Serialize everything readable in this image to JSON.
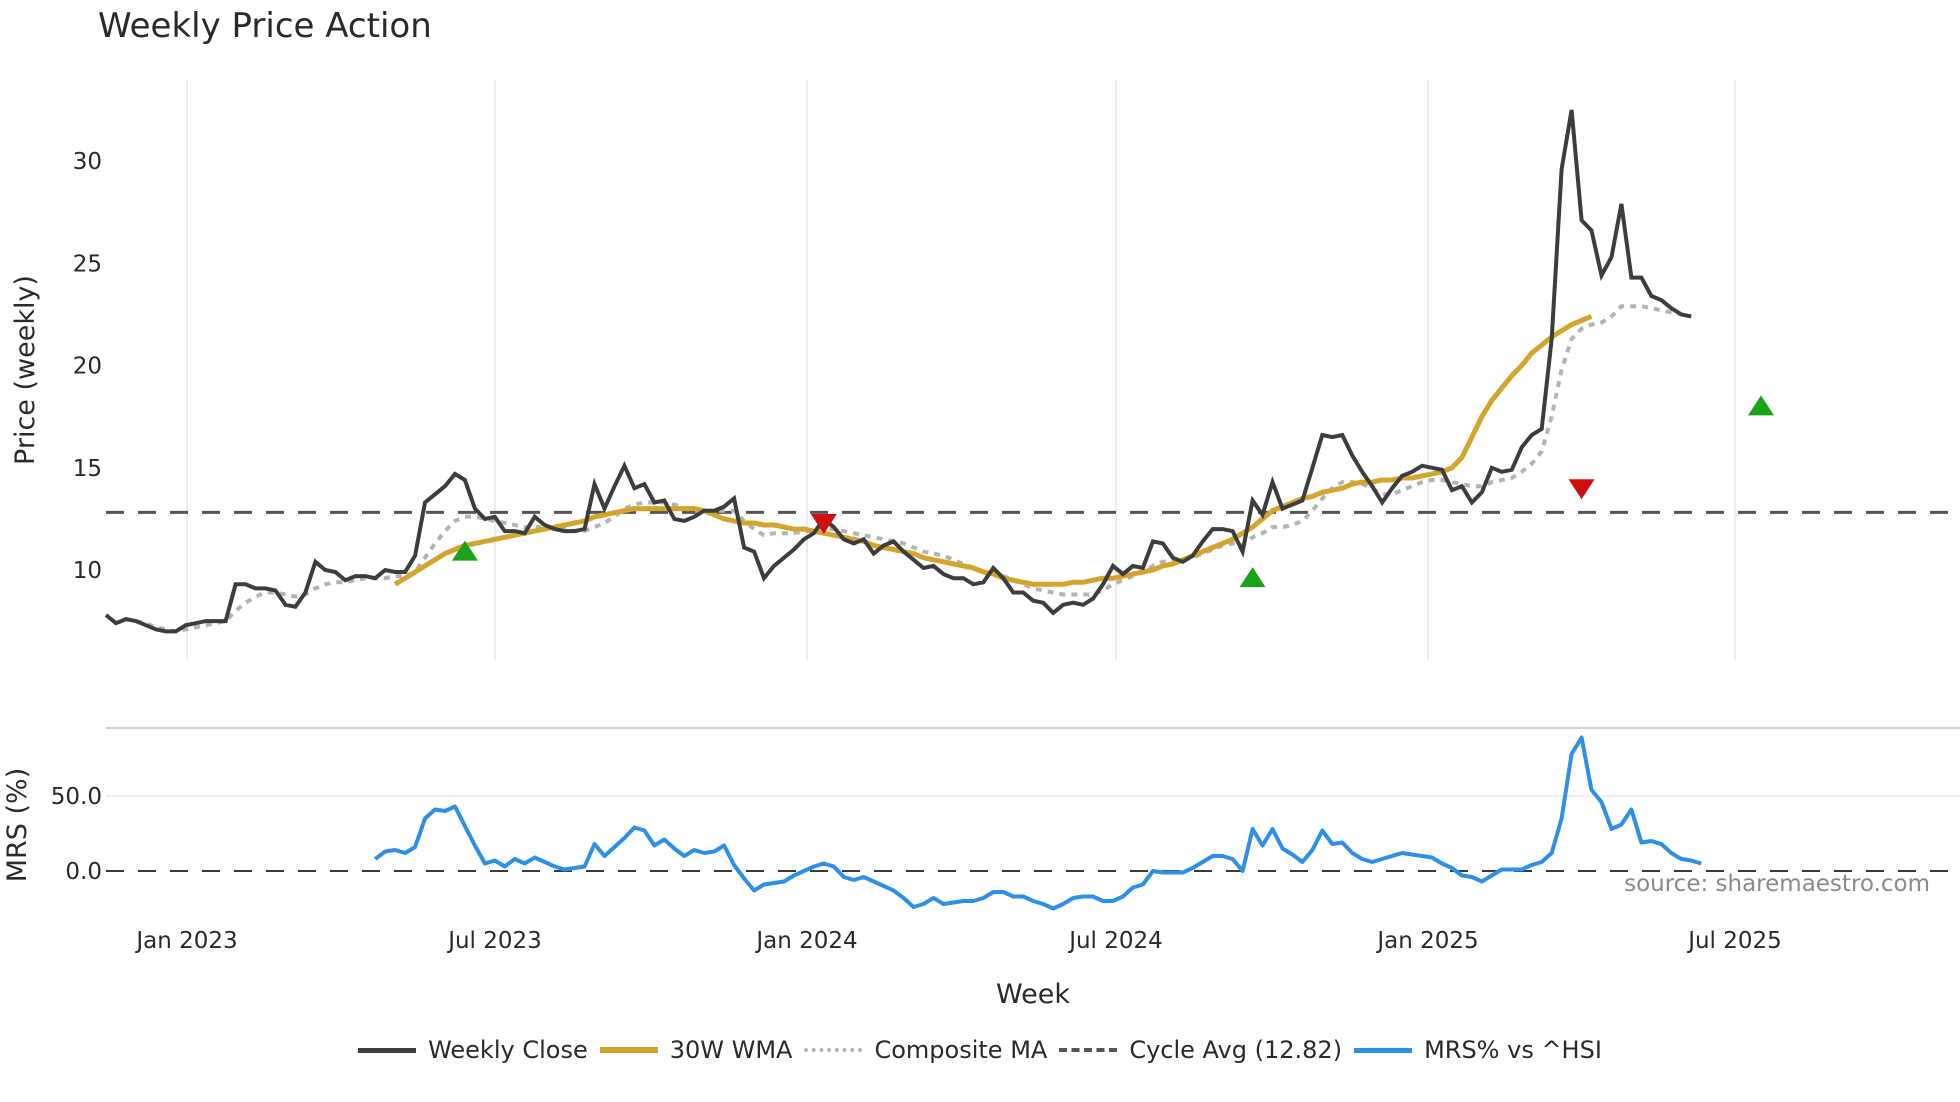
{
  "title": "Weekly Price Action",
  "source_note": "source: sharemaestro.com",
  "colors": {
    "close": "#3d3d3d",
    "wma": "#d4a52c",
    "composite": "#b4b4b4",
    "cycle": "#555555",
    "mrs": "#2e8fe6",
    "buy_marker": "#1aa31a",
    "sell_marker": "#d01010",
    "grid": "#ececf0"
  },
  "legend": [
    {
      "label": "Weekly Close",
      "style": "solid-dark"
    },
    {
      "label": "30W WMA",
      "style": "solid-gold"
    },
    {
      "label": "Composite MA",
      "style": "dot-gray"
    },
    {
      "label": "Cycle Avg (12.82)",
      "style": "dash-dark"
    },
    {
      "label": "MRS% vs ^HSI",
      "style": "solid-blue"
    }
  ],
  "chart_data": [
    {
      "type": "line",
      "title": "Weekly Price Action",
      "xlabel": "Week",
      "ylabel": "Price (weekly)",
      "x_ticks": [
        "Jan 2023",
        "Jul 2023",
        "Jan 2024",
        "Jul 2024",
        "Jan 2025",
        "Jul 2025"
      ],
      "y_ticks": [
        10,
        15,
        20,
        25,
        30
      ],
      "ylim": [
        5.8,
        33.5
      ],
      "grid": "vertical",
      "start_week": "2022-11-28",
      "horizontal_line": {
        "name": "Cycle Avg (12.82)",
        "value": 12.82
      },
      "series": [
        {
          "name": "Weekly Close",
          "start_index": 0,
          "values": [
            7.8,
            7.4,
            7.6,
            7.5,
            7.3,
            7.1,
            7.0,
            7.0,
            7.3,
            7.4,
            7.5,
            7.5,
            7.5,
            9.3,
            9.3,
            9.1,
            9.1,
            9.0,
            8.3,
            8.2,
            8.9,
            10.4,
            10.0,
            9.9,
            9.5,
            9.7,
            9.7,
            9.6,
            10.0,
            9.9,
            9.9,
            10.7,
            13.3,
            13.7,
            14.1,
            14.7,
            14.4,
            13.0,
            12.5,
            12.6,
            11.9,
            11.9,
            11.8,
            12.6,
            12.2,
            12.0,
            11.9,
            11.9,
            12.0,
            14.2,
            13.0,
            14.1,
            15.1,
            14.0,
            14.2,
            13.3,
            13.4,
            12.5,
            12.4,
            12.6,
            12.9,
            12.9,
            13.1,
            13.5,
            11.1,
            10.9,
            9.6,
            10.2,
            10.6,
            11.0,
            11.5,
            11.8,
            12.5,
            12.1,
            11.5,
            11.3,
            11.5,
            10.8,
            11.2,
            11.4,
            10.9,
            10.5,
            10.1,
            10.2,
            9.8,
            9.6,
            9.6,
            9.3,
            9.4,
            10.1,
            9.6,
            8.9,
            8.9,
            8.5,
            8.4,
            7.9,
            8.3,
            8.4,
            8.3,
            8.6,
            9.3,
            10.2,
            9.8,
            10.2,
            10.1,
            11.4,
            11.3,
            10.6,
            10.4,
            10.7,
            11.4,
            12.0,
            12.0,
            11.9,
            10.9,
            13.4,
            12.7,
            14.3,
            13.0,
            13.2,
            13.4,
            15.0,
            16.6,
            16.5,
            16.6,
            15.6,
            14.8,
            14.1,
            13.3,
            14.0,
            14.6,
            14.8,
            15.1,
            15.0,
            14.9,
            13.9,
            14.1,
            13.3,
            13.8,
            15.0,
            14.8,
            14.9,
            16.0,
            16.6,
            16.9,
            21.3,
            29.6,
            32.5,
            27.1,
            26.6,
            24.4,
            25.3,
            27.9,
            24.3,
            24.3,
            23.4,
            23.2,
            22.8,
            22.5,
            22.4
          ]
        },
        {
          "name": "30W WMA",
          "start_index": 29,
          "values": [
            9.3,
            9.6,
            9.9,
            10.2,
            10.5,
            10.8,
            11.0,
            11.2,
            11.3,
            11.4,
            11.5,
            11.6,
            11.7,
            11.8,
            11.9,
            12.0,
            12.1,
            12.2,
            12.3,
            12.4,
            12.6,
            12.7,
            12.8,
            12.9,
            13.0,
            13.0,
            13.0,
            13.0,
            13.0,
            13.0,
            13.0,
            12.9,
            12.7,
            12.5,
            12.4,
            12.3,
            12.3,
            12.2,
            12.2,
            12.1,
            12.0,
            12.0,
            11.9,
            11.8,
            11.7,
            11.6,
            11.5,
            11.4,
            11.2,
            11.1,
            11.0,
            10.9,
            10.8,
            10.6,
            10.5,
            10.4,
            10.3,
            10.2,
            10.1,
            9.9,
            9.8,
            9.6,
            9.5,
            9.4,
            9.3,
            9.3,
            9.3,
            9.3,
            9.4,
            9.4,
            9.5,
            9.6,
            9.6,
            9.7,
            9.8,
            9.9,
            10.0,
            10.2,
            10.3,
            10.5,
            10.7,
            10.9,
            11.1,
            11.3,
            11.5,
            11.8,
            12.1,
            12.5,
            12.9,
            13.1,
            13.3,
            13.5,
            13.6,
            13.8,
            13.9,
            14.0,
            14.2,
            14.3,
            14.3,
            14.4,
            14.4,
            14.5,
            14.5,
            14.6,
            14.7,
            14.8,
            15.0,
            15.5,
            16.5,
            17.5,
            18.3,
            18.9,
            19.5,
            20.0,
            20.6,
            21.0,
            21.4,
            21.7,
            22.0,
            22.2,
            22.4
          ]
        },
        {
          "name": "Composite MA",
          "start_index": 0,
          "values": [
            null,
            null,
            null,
            7.5,
            7.4,
            7.2,
            7.1,
            7.0,
            7.1,
            7.2,
            7.3,
            7.4,
            7.5,
            8.0,
            8.4,
            8.7,
            8.9,
            8.9,
            8.8,
            8.7,
            8.8,
            9.1,
            9.3,
            9.4,
            9.4,
            9.5,
            9.6,
            9.6,
            9.6,
            9.7,
            9.7,
            9.9,
            10.6,
            11.3,
            11.9,
            12.4,
            12.6,
            12.6,
            12.5,
            12.4,
            12.3,
            12.2,
            12.1,
            12.1,
            12.1,
            12.0,
            12.0,
            11.9,
            11.9,
            12.1,
            12.3,
            12.6,
            13.0,
            13.2,
            13.3,
            13.3,
            13.3,
            13.2,
            13.0,
            12.9,
            12.9,
            12.9,
            12.9,
            12.9,
            12.4,
            12.0,
            11.7,
            11.8,
            11.8,
            11.8,
            11.9,
            11.9,
            12.0,
            12.0,
            11.9,
            11.8,
            11.7,
            11.6,
            11.5,
            11.4,
            11.3,
            11.1,
            10.9,
            10.8,
            10.7,
            10.5,
            10.3,
            10.1,
            9.9,
            9.8,
            9.7,
            9.5,
            9.3,
            9.1,
            9.0,
            8.9,
            8.8,
            8.8,
            8.8,
            8.8,
            9.0,
            9.3,
            9.5,
            9.7,
            9.9,
            10.2,
            10.4,
            10.4,
            10.5,
            10.6,
            10.8,
            11.0,
            11.2,
            11.3,
            11.2,
            11.6,
            11.8,
            12.1,
            12.1,
            12.2,
            12.4,
            12.9,
            13.5,
            14.0,
            14.3,
            14.3,
            14.2,
            14.0,
            13.7,
            13.7,
            13.9,
            14.1,
            14.3,
            14.4,
            14.4,
            14.3,
            14.2,
            14.1,
            14.1,
            14.3,
            14.4,
            14.5,
            14.8,
            15.2,
            15.8,
            17.5,
            19.8,
            21.3,
            21.8,
            22.0,
            22.1,
            22.4,
            22.9,
            22.9,
            22.9,
            22.8,
            22.7,
            22.6,
            22.5,
            22.4
          ]
        },
        {
          "name": "Buy signals",
          "type": "marker-up",
          "points": [
            [
              36,
              10.9
            ],
            [
              115,
              9.6
            ],
            [
              166,
              18.0
            ]
          ]
        },
        {
          "name": "Sell signals",
          "type": "marker-down",
          "points": [
            [
              72,
              12.3
            ],
            [
              148,
              14.0
            ]
          ]
        }
      ]
    },
    {
      "type": "line",
      "xlabel": "Week",
      "ylabel": "MRS (%)",
      "y_ticks": [
        0.0,
        50.0
      ],
      "ylim": [
        -38,
        95
      ],
      "horizontal_line": {
        "value": 0.0
      },
      "series": [
        {
          "name": "MRS% vs ^HSI",
          "start_index": 27,
          "values": [
            8,
            13,
            14,
            12,
            16,
            35,
            41,
            40,
            43,
            30,
            17,
            5,
            7,
            3,
            8,
            5,
            9,
            6,
            3,
            1,
            2,
            3,
            18,
            10,
            16,
            22,
            29,
            27,
            17,
            21,
            15,
            10,
            14,
            12,
            13,
            17,
            4,
            -5,
            -13,
            -9,
            -8,
            -7,
            -3,
            0,
            3,
            5,
            3,
            -4,
            -6,
            -4,
            -7,
            -10,
            -13,
            -18,
            -24,
            -22,
            -18,
            -22,
            -21,
            -20,
            -20,
            -18,
            -14,
            -14,
            -17,
            -17,
            -20,
            -22,
            -25,
            -22,
            -18,
            -17,
            -17,
            -20,
            -20,
            -17,
            -11,
            -9,
            0,
            -1,
            -1,
            -1,
            2,
            6,
            10,
            10,
            8,
            0,
            28,
            17,
            28,
            15,
            11,
            6,
            14,
            27,
            18,
            19,
            12,
            8,
            6,
            8,
            10,
            12,
            11,
            10,
            9,
            5,
            2,
            -3,
            -4,
            -7,
            -3,
            1,
            1,
            1,
            4,
            6,
            12,
            35,
            78,
            89,
            54,
            46,
            28,
            31,
            41,
            19,
            20,
            18,
            12,
            8,
            7,
            5
          ]
        }
      ]
    }
  ]
}
